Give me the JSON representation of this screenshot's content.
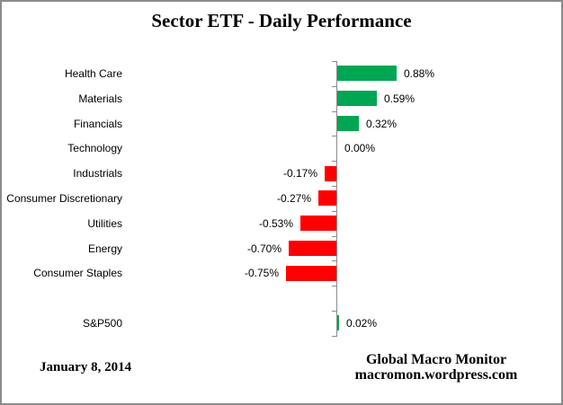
{
  "chart_data": {
    "type": "bar",
    "orientation": "horizontal",
    "title": "Sector ETF - Daily Performance",
    "categories": [
      "Health Care",
      "Materials",
      "Financials",
      "Technology",
      "Industrials",
      "Consumer Discretionary",
      "Utilities",
      "Energy",
      "Consumer Staples",
      "",
      "S&P500"
    ],
    "values": [
      0.88,
      0.59,
      0.32,
      0.0,
      -0.17,
      -0.27,
      -0.53,
      -0.7,
      -0.75,
      null,
      0.02
    ],
    "data_labels": [
      "0.88%",
      "0.59%",
      "0.32%",
      "0.00%",
      "-0.17%",
      "-0.27%",
      "-0.53%",
      "-0.70%",
      "-0.75%",
      null,
      "0.02%"
    ],
    "positive_color": "#00A651",
    "negative_color": "#FF0000",
    "axis_color": "#8c8c8c",
    "grid": false,
    "legend": false,
    "xlabel": "",
    "ylabel": ""
  },
  "footer": {
    "date": "January 8, 2014",
    "source_line1": "Global Macro Monitor",
    "source_line2": "macromon.wordpress.com"
  }
}
